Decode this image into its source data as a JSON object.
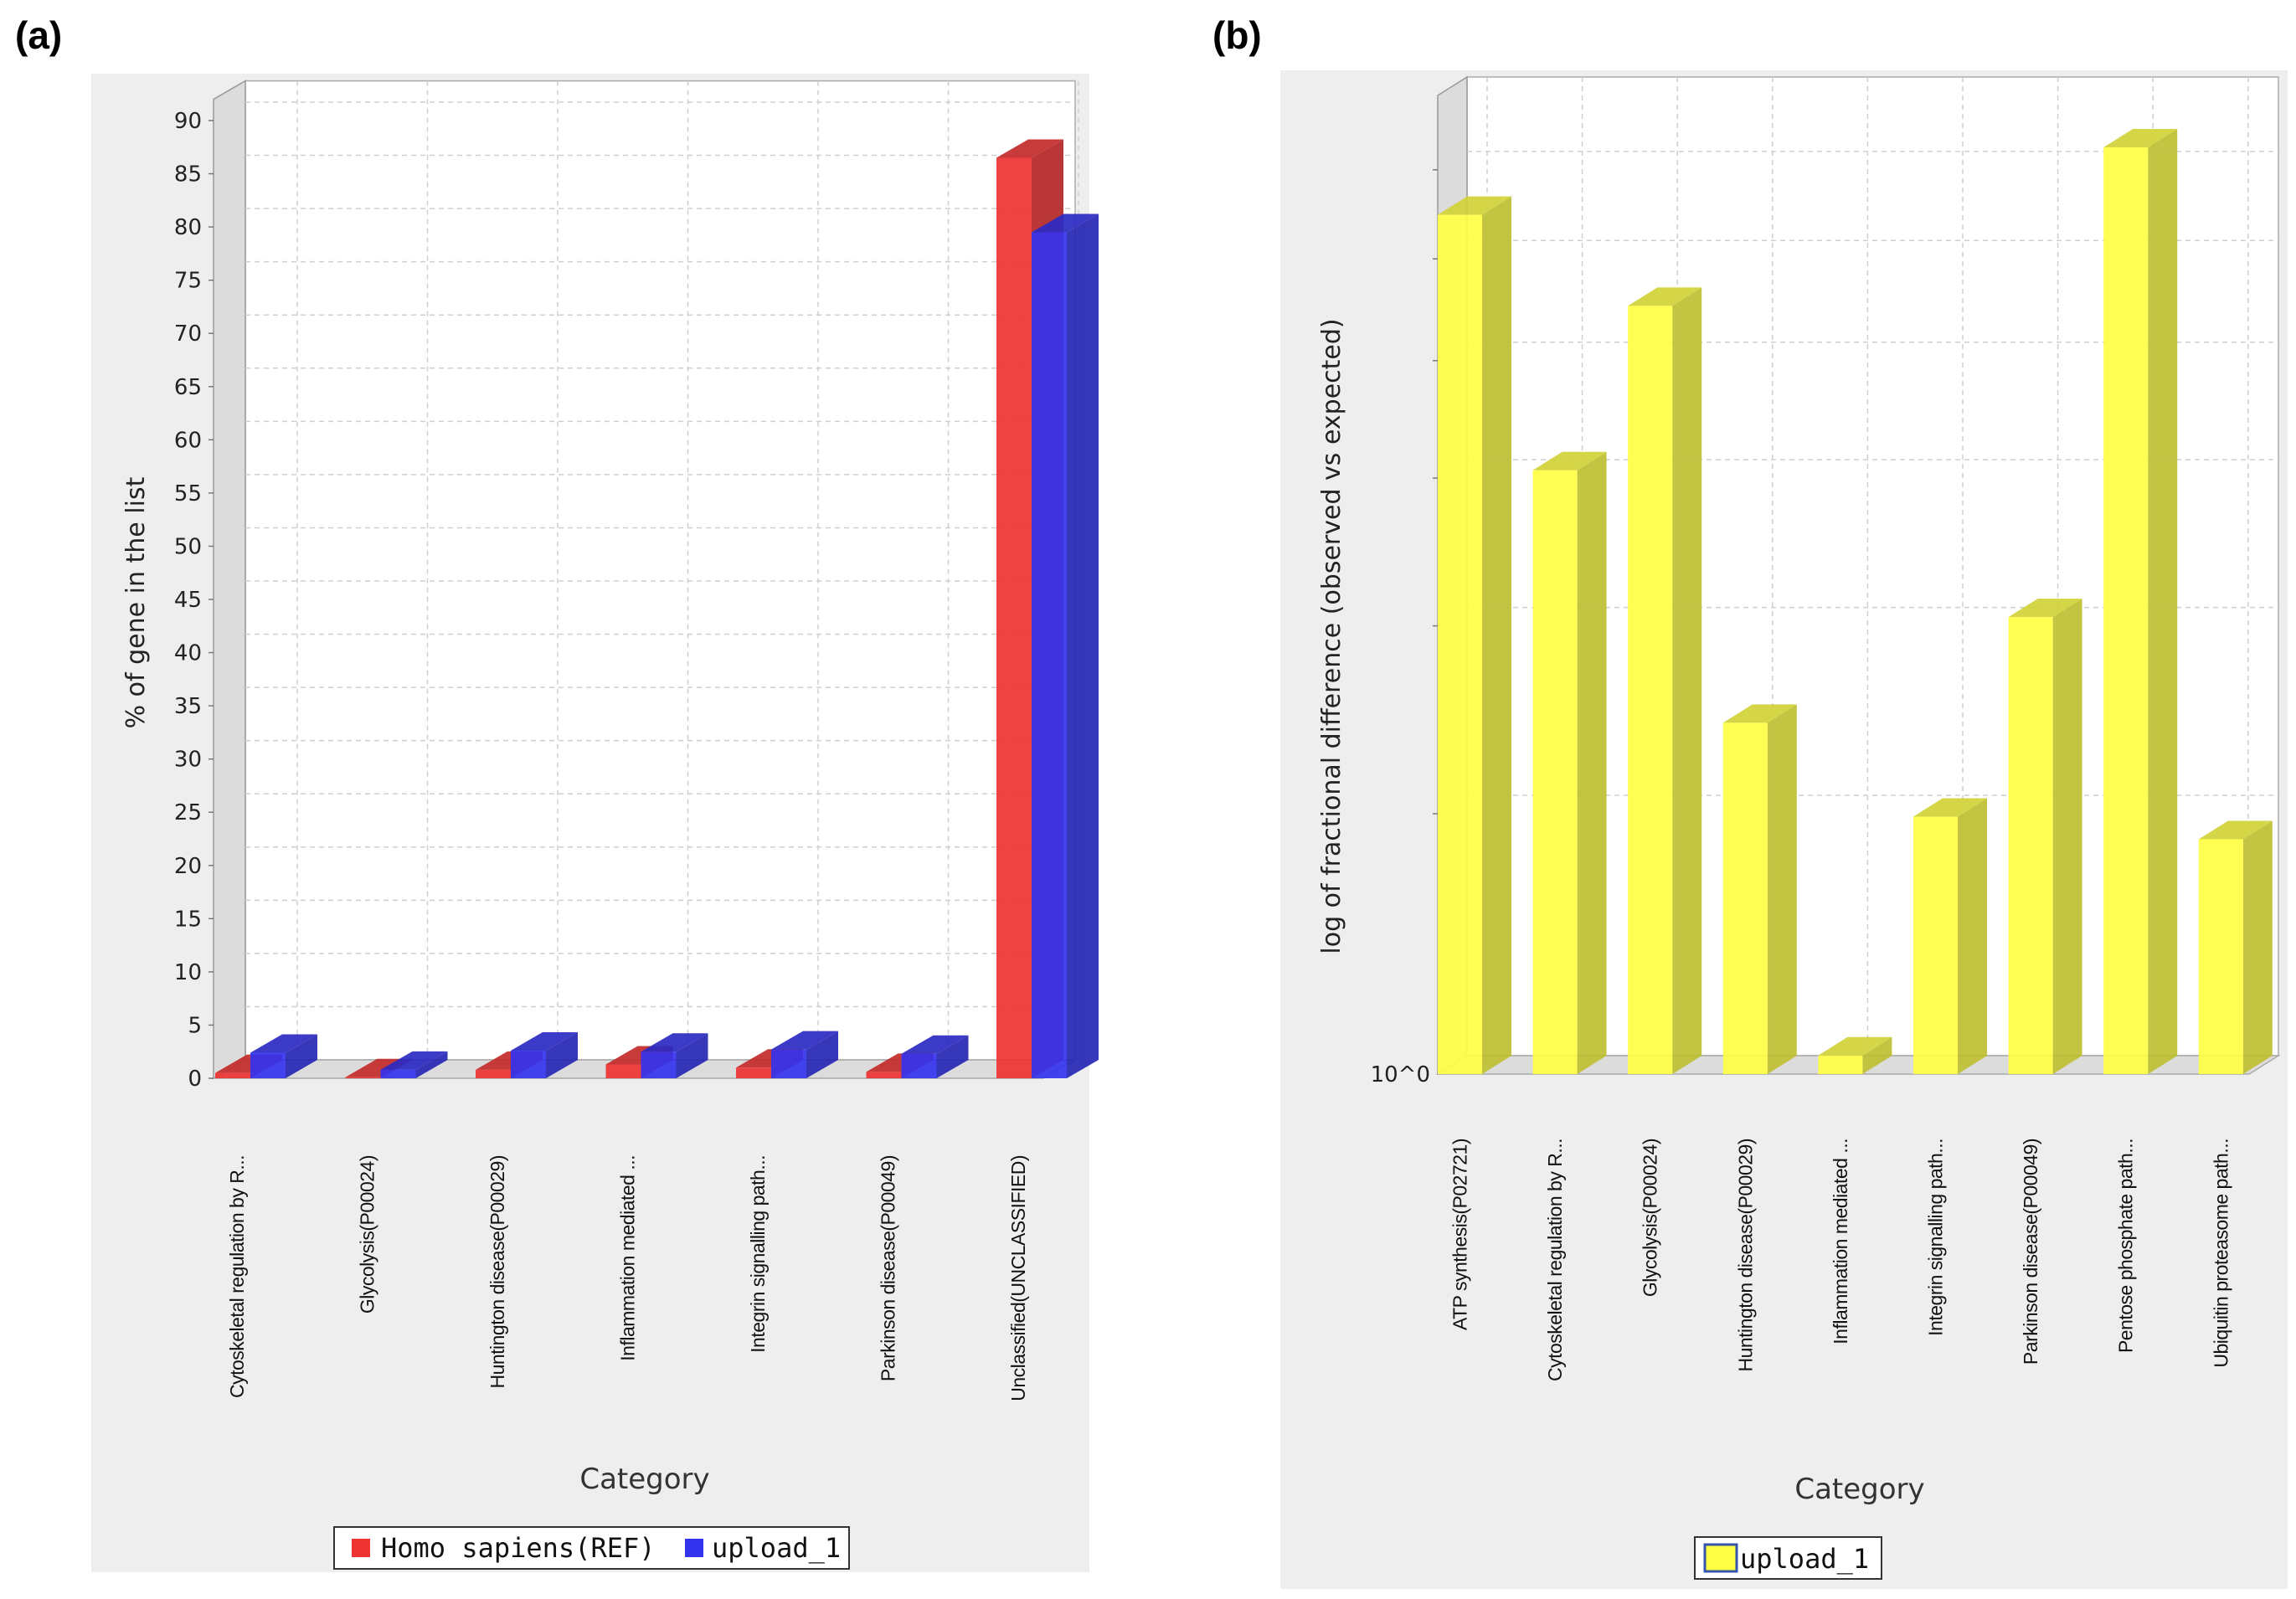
{
  "panels": {
    "a_label": "(a)",
    "b_label": "(b)"
  },
  "chart_data": [
    {
      "type": "bar",
      "title": "",
      "xlabel": "Category",
      "ylabel": "% of gene in the list",
      "ylim": [
        0,
        92
      ],
      "yticks": [
        "0",
        "5",
        "10",
        "15",
        "20",
        "25",
        "30",
        "35",
        "40",
        "45",
        "50",
        "55",
        "60",
        "65",
        "70",
        "75",
        "80",
        "85",
        "90"
      ],
      "grid": true,
      "legend_position": "bottom",
      "categories": [
        "Cytoskeletal regulation by R...",
        "Glycolysis(P00024)",
        "Huntington disease(P00029)",
        "Inflammation mediated ...",
        "Integrin signalling path...",
        "Parkinson disease(P00049)",
        "Unclassified(UNCLASSIFIED)"
      ],
      "series": [
        {
          "name": "Homo sapiens(REF)",
          "color": "#ee3333",
          "values": [
            0.5,
            0.1,
            0.8,
            1.3,
            1.0,
            0.6,
            86.5
          ]
        },
        {
          "name": "upload_1",
          "color": "#3333ee",
          "values": [
            2.4,
            0.8,
            2.6,
            2.5,
            2.7,
            2.3,
            79.5
          ]
        }
      ]
    },
    {
      "type": "bar",
      "title": "",
      "xlabel": "Category",
      "ylabel": "log of fractional difference (observed vs expected)",
      "yscale": "log",
      "ytick_label": "10^0",
      "value_units": "relative log height (axis base 10^0 = 0, axis top = 1)",
      "ylim": [
        0,
        1
      ],
      "grid": true,
      "legend_position": "bottom",
      "categories": [
        "ATP synthesis(P02721)",
        "Cytoskeletal regulation by R...",
        "Glycolysis(P00024)",
        "Huntington disease(P00029)",
        "Inflammation mediated ...",
        "Integrin signalling path...",
        "Parkinson disease(P00049)",
        "Pentose phosphate path...",
        "Ubiquitin proteasome path..."
      ],
      "series": [
        {
          "name": "upload_1",
          "color": "#ffff44",
          "values": [
            0.878,
            0.617,
            0.785,
            0.359,
            0.019,
            0.263,
            0.467,
            0.947,
            0.24
          ]
        }
      ]
    }
  ]
}
